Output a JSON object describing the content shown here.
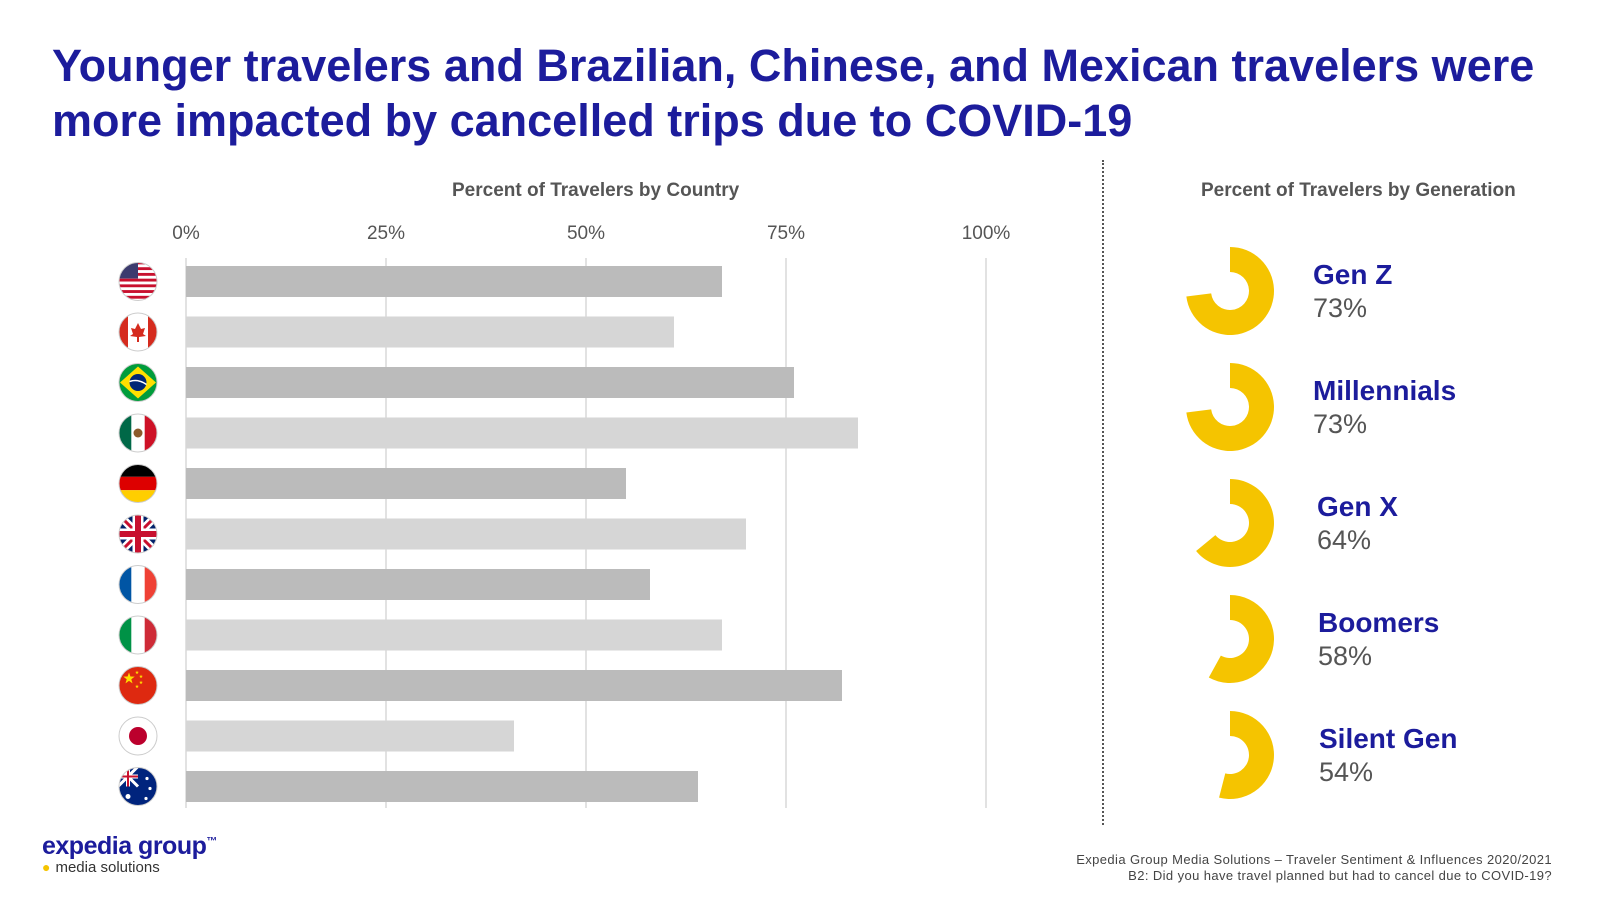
{
  "title": "Younger travelers and Brazilian, Chinese, and Mexican travelers were more impacted by cancelled trips due to COVID-19",
  "chart_data": [
    {
      "type": "bar",
      "orientation": "horizontal",
      "title": "Percent of Travelers by Country",
      "xlim": [
        0,
        100
      ],
      "ticks": [
        "0%",
        "25%",
        "50%",
        "75%",
        "100%"
      ],
      "tick_values": [
        0,
        25,
        50,
        75,
        100
      ],
      "grid": true,
      "categories": [
        "united-states-flag",
        "canada-flag",
        "brazil-flag",
        "mexico-flag",
        "germany-flag",
        "united-kingdom-flag",
        "france-flag",
        "italy-flag",
        "china-flag",
        "japan-flag",
        "australia-flag"
      ],
      "values": [
        67,
        61,
        76,
        84,
        55,
        70,
        58,
        67,
        82,
        41,
        64
      ],
      "bar_colors": [
        "#bbbbbb",
        "#d6d6d6"
      ]
    },
    {
      "type": "pie",
      "style": "donut",
      "title": "Percent of Travelers by Generation",
      "categories": [
        "Gen Z",
        "Millennials",
        "Gen X",
        "Boomers",
        "Silent Gen"
      ],
      "values": [
        73,
        73,
        64,
        58,
        54
      ],
      "value_labels": [
        "73%",
        "73%",
        "64%",
        "58%",
        "54%"
      ],
      "color": "#f5c400"
    }
  ],
  "footer": {
    "logo_main": "expedia group",
    "logo_tm": "™",
    "logo_sub": "media solutions",
    "source_line1": "Expedia Group Media Solutions – Traveler Sentiment & Influences 2020/2021",
    "source_line2": "B2: Did you have travel planned but had to cancel due to COVID-19?"
  },
  "colors": {
    "title": "#1c1c9c",
    "donut": "#f5c400",
    "bar_dark": "#bbbbbb",
    "bar_light": "#d6d6d6",
    "gridline": "#d9d9d9"
  }
}
